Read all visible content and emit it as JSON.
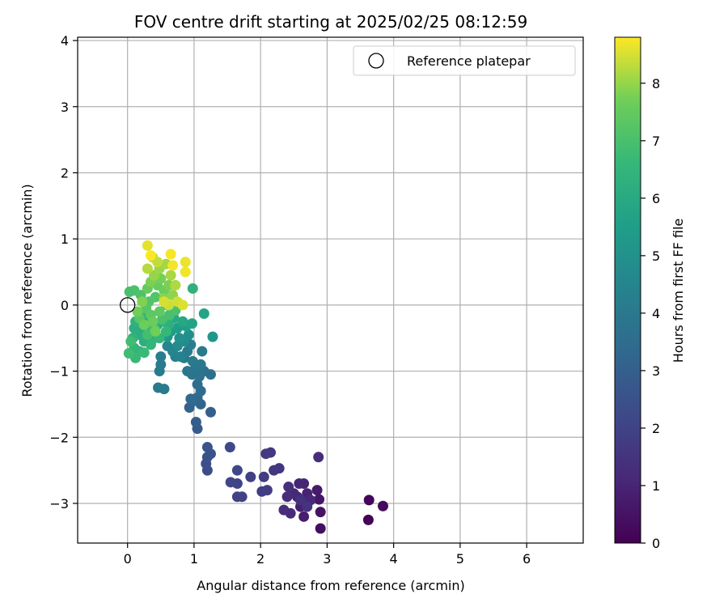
{
  "chart_data": {
    "type": "scatter",
    "title": "FOV centre drift starting at 2025/02/25 08:12:59",
    "xlabel": "Angular distance from reference (arcmin)",
    "ylabel": "Rotation from reference (arcmin)",
    "xlim": [
      -0.75,
      6.85
    ],
    "ylim": [
      -3.6,
      4.05
    ],
    "xticks": [
      0,
      1,
      2,
      3,
      4,
      5,
      6
    ],
    "yticks": [
      -3,
      -2,
      -1,
      0,
      1,
      2,
      3,
      4
    ],
    "grid": true,
    "legend": {
      "placement": "upper-right",
      "entries": [
        "Reference platepar"
      ]
    },
    "reference_point": {
      "x": 0.0,
      "y": 0.0,
      "label": "Reference platepar"
    },
    "colorbar": {
      "label": "Hours from first FF file",
      "min": 0,
      "max": 8.8,
      "ticks": [
        0,
        1,
        2,
        3,
        4,
        5,
        6,
        7,
        8
      ],
      "colormap": "viridis"
    },
    "points": [
      {
        "x": 3.62,
        "y": -3.25,
        "t": 0.05
      },
      {
        "x": 3.63,
        "y": -2.95,
        "t": 0.15
      },
      {
        "x": 3.84,
        "y": -3.04,
        "t": 0.25
      },
      {
        "x": 2.9,
        "y": -3.38,
        "t": 0.4
      },
      {
        "x": 2.9,
        "y": -3.13,
        "t": 0.5
      },
      {
        "x": 2.88,
        "y": -2.94,
        "t": 0.6
      },
      {
        "x": 2.85,
        "y": -2.8,
        "t": 0.7
      },
      {
        "x": 2.65,
        "y": -3.2,
        "t": 0.8
      },
      {
        "x": 2.6,
        "y": -3.05,
        "t": 0.85
      },
      {
        "x": 2.55,
        "y": -2.9,
        "t": 0.9
      },
      {
        "x": 2.7,
        "y": -2.85,
        "t": 0.95
      },
      {
        "x": 2.65,
        "y": -2.7,
        "t": 1.0
      },
      {
        "x": 2.58,
        "y": -2.7,
        "t": 1.05
      },
      {
        "x": 2.75,
        "y": -2.95,
        "t": 1.1
      },
      {
        "x": 2.5,
        "y": -2.85,
        "t": 1.15
      },
      {
        "x": 2.45,
        "y": -3.15,
        "t": 1.2
      },
      {
        "x": 2.35,
        "y": -3.1,
        "t": 1.25
      },
      {
        "x": 2.4,
        "y": -2.9,
        "t": 1.3
      },
      {
        "x": 2.42,
        "y": -2.75,
        "t": 1.35
      },
      {
        "x": 2.6,
        "y": -2.95,
        "t": 1.4
      },
      {
        "x": 2.7,
        "y": -3.05,
        "t": 1.45
      },
      {
        "x": 2.87,
        "y": -2.3,
        "t": 1.3
      },
      {
        "x": 2.28,
        "y": -2.47,
        "t": 1.55
      },
      {
        "x": 2.2,
        "y": -2.5,
        "t": 1.6
      },
      {
        "x": 2.15,
        "y": -2.23,
        "t": 1.65
      },
      {
        "x": 2.08,
        "y": -2.25,
        "t": 1.7
      },
      {
        "x": 2.05,
        "y": -2.6,
        "t": 1.75
      },
      {
        "x": 2.1,
        "y": -2.8,
        "t": 1.8
      },
      {
        "x": 2.02,
        "y": -2.82,
        "t": 1.85
      },
      {
        "x": 1.85,
        "y": -2.6,
        "t": 1.9
      },
      {
        "x": 1.72,
        "y": -2.9,
        "t": 1.95
      },
      {
        "x": 1.65,
        "y": -2.9,
        "t": 2.0
      },
      {
        "x": 1.65,
        "y": -2.7,
        "t": 2.05
      },
      {
        "x": 1.55,
        "y": -2.68,
        "t": 2.1
      },
      {
        "x": 1.65,
        "y": -2.5,
        "t": 2.15
      },
      {
        "x": 1.54,
        "y": -2.15,
        "t": 2.2
      },
      {
        "x": 1.2,
        "y": -2.5,
        "t": 2.3
      },
      {
        "x": 1.18,
        "y": -2.4,
        "t": 2.4
      },
      {
        "x": 1.2,
        "y": -2.3,
        "t": 2.5
      },
      {
        "x": 1.25,
        "y": -2.25,
        "t": 2.55
      },
      {
        "x": 1.2,
        "y": -2.15,
        "t": 2.6
      },
      {
        "x": 1.05,
        "y": -1.87,
        "t": 2.8
      },
      {
        "x": 1.03,
        "y": -1.77,
        "t": 2.9
      },
      {
        "x": 1.25,
        "y": -1.62,
        "t": 3.0
      },
      {
        "x": 0.93,
        "y": -1.55,
        "t": 3.1
      },
      {
        "x": 1.1,
        "y": -1.5,
        "t": 3.2
      },
      {
        "x": 1.0,
        "y": -1.45,
        "t": 3.3
      },
      {
        "x": 1.05,
        "y": -1.4,
        "t": 3.35
      },
      {
        "x": 0.95,
        "y": -1.42,
        "t": 3.4
      },
      {
        "x": 1.1,
        "y": -1.3,
        "t": 3.45
      },
      {
        "x": 1.05,
        "y": -1.2,
        "t": 3.5
      },
      {
        "x": 1.25,
        "y": -1.05,
        "t": 3.6
      },
      {
        "x": 1.15,
        "y": -1.0,
        "t": 3.7
      },
      {
        "x": 1.08,
        "y": -1.08,
        "t": 3.75
      },
      {
        "x": 0.97,
        "y": -1.05,
        "t": 3.8
      },
      {
        "x": 0.9,
        "y": -1.0,
        "t": 3.85
      },
      {
        "x": 1.02,
        "y": -0.95,
        "t": 3.9
      },
      {
        "x": 1.1,
        "y": -0.9,
        "t": 3.95
      },
      {
        "x": 0.85,
        "y": -0.8,
        "t": 4.0
      },
      {
        "x": 0.98,
        "y": -0.85,
        "t": 4.05
      },
      {
        "x": 1.12,
        "y": -0.7,
        "t": 4.1
      },
      {
        "x": 0.9,
        "y": -0.7,
        "t": 4.15
      },
      {
        "x": 0.95,
        "y": -0.6,
        "t": 4.2
      },
      {
        "x": 0.46,
        "y": -1.25,
        "t": 4.0
      },
      {
        "x": 0.55,
        "y": -1.27,
        "t": 4.05
      },
      {
        "x": 0.48,
        "y": -1.0,
        "t": 4.1
      },
      {
        "x": 0.5,
        "y": -0.9,
        "t": 4.15
      },
      {
        "x": 0.5,
        "y": -0.78,
        "t": 4.2
      },
      {
        "x": 0.72,
        "y": -0.78,
        "t": 4.3
      },
      {
        "x": 0.8,
        "y": -0.78,
        "t": 4.4
      },
      {
        "x": 0.68,
        "y": -0.7,
        "t": 4.5
      },
      {
        "x": 0.6,
        "y": -0.62,
        "t": 4.6
      },
      {
        "x": 0.75,
        "y": -0.62,
        "t": 4.7
      },
      {
        "x": 0.85,
        "y": -0.55,
        "t": 4.8
      },
      {
        "x": 0.92,
        "y": -0.45,
        "t": 4.9
      },
      {
        "x": 0.78,
        "y": -0.5,
        "t": 5.0
      },
      {
        "x": 1.28,
        "y": -0.48,
        "t": 5.2
      },
      {
        "x": 0.6,
        "y": -0.48,
        "t": 5.3
      },
      {
        "x": 0.65,
        "y": -0.4,
        "t": 5.4
      },
      {
        "x": 0.75,
        "y": -0.35,
        "t": 5.5
      },
      {
        "x": 0.88,
        "y": -0.32,
        "t": 5.6
      },
      {
        "x": 0.97,
        "y": -0.28,
        "t": 5.7
      },
      {
        "x": 1.15,
        "y": -0.13,
        "t": 5.8
      },
      {
        "x": 0.83,
        "y": -0.25,
        "t": 5.9
      },
      {
        "x": 0.7,
        "y": -0.2,
        "t": 6.0
      },
      {
        "x": 0.55,
        "y": -0.25,
        "t": 6.0
      },
      {
        "x": 0.45,
        "y": -0.3,
        "t": 6.05
      },
      {
        "x": 0.35,
        "y": -0.35,
        "t": 6.1
      },
      {
        "x": 0.3,
        "y": -0.25,
        "t": 6.1
      },
      {
        "x": 0.22,
        "y": -0.4,
        "t": 6.15
      },
      {
        "x": 0.15,
        "y": -0.45,
        "t": 6.15
      },
      {
        "x": 0.1,
        "y": -0.35,
        "t": 6.2
      },
      {
        "x": 0.25,
        "y": -0.55,
        "t": 6.2
      },
      {
        "x": 0.4,
        "y": -0.5,
        "t": 6.25
      },
      {
        "x": 0.62,
        "y": -0.3,
        "t": 6.25
      },
      {
        "x": 0.98,
        "y": 0.25,
        "t": 6.3
      },
      {
        "x": 0.2,
        "y": -0.15,
        "t": 6.3
      },
      {
        "x": 0.12,
        "y": -0.25,
        "t": 6.35
      },
      {
        "x": 0.08,
        "y": -0.5,
        "t": 6.4
      },
      {
        "x": 0.1,
        "y": -0.65,
        "t": 6.45
      },
      {
        "x": 0.18,
        "y": -0.7,
        "t": 6.5
      },
      {
        "x": 0.35,
        "y": -0.6,
        "t": 6.5
      },
      {
        "x": 0.48,
        "y": -0.5,
        "t": 6.55
      },
      {
        "x": 0.58,
        "y": -0.4,
        "t": 6.6
      },
      {
        "x": 0.12,
        "y": -0.8,
        "t": 6.65
      },
      {
        "x": 0.25,
        "y": -0.72,
        "t": 6.7
      },
      {
        "x": 0.02,
        "y": -0.73,
        "t": 6.8
      },
      {
        "x": 0.05,
        "y": -0.55,
        "t": 6.85
      },
      {
        "x": 0.3,
        "y": -0.45,
        "t": 6.9
      },
      {
        "x": 0.4,
        "y": -0.35,
        "t": 6.95
      },
      {
        "x": 0.52,
        "y": -0.22,
        "t": 7.0
      },
      {
        "x": 0.63,
        "y": -0.15,
        "t": 7.0
      },
      {
        "x": 0.72,
        "y": -0.08,
        "t": 7.05
      },
      {
        "x": 0.03,
        "y": 0.2,
        "t": 7.0
      },
      {
        "x": 0.1,
        "y": 0.22,
        "t": 7.05
      },
      {
        "x": 0.2,
        "y": 0.15,
        "t": 7.1
      },
      {
        "x": 0.32,
        "y": 0.05,
        "t": 7.15
      },
      {
        "x": 0.42,
        "y": 0.12,
        "t": 7.2
      },
      {
        "x": 0.28,
        "y": -0.05,
        "t": 7.25
      },
      {
        "x": 0.18,
        "y": -0.2,
        "t": 7.3
      },
      {
        "x": 0.35,
        "y": -0.15,
        "t": 7.35
      },
      {
        "x": 0.48,
        "y": -0.1,
        "t": 7.4
      },
      {
        "x": 0.58,
        "y": 0.0,
        "t": 7.45
      },
      {
        "x": 0.3,
        "y": 0.25,
        "t": 7.5
      },
      {
        "x": 0.45,
        "y": 0.3,
        "t": 7.55
      },
      {
        "x": 0.55,
        "y": 0.22,
        "t": 7.6
      },
      {
        "x": 0.38,
        "y": -0.25,
        "t": 7.6
      },
      {
        "x": 0.25,
        "y": -0.3,
        "t": 7.65
      },
      {
        "x": 0.42,
        "y": -0.4,
        "t": 7.7
      },
      {
        "x": 0.15,
        "y": -0.1,
        "t": 7.7
      },
      {
        "x": 0.5,
        "y": 0.4,
        "t": 7.75
      },
      {
        "x": 0.62,
        "y": 0.3,
        "t": 7.8
      },
      {
        "x": 0.35,
        "y": 0.35,
        "t": 7.8
      },
      {
        "x": 0.22,
        "y": 0.05,
        "t": 7.85
      },
      {
        "x": 0.55,
        "y": 0.1,
        "t": 7.9
      },
      {
        "x": 0.68,
        "y": 0.15,
        "t": 7.95
      },
      {
        "x": 0.4,
        "y": 0.45,
        "t": 8.0
      },
      {
        "x": 0.48,
        "y": 0.55,
        "t": 8.05
      },
      {
        "x": 0.58,
        "y": 0.62,
        "t": 8.1
      },
      {
        "x": 0.65,
        "y": 0.45,
        "t": 8.15
      },
      {
        "x": 0.72,
        "y": 0.3,
        "t": 8.2
      },
      {
        "x": 0.3,
        "y": 0.55,
        "t": 8.25
      },
      {
        "x": 0.38,
        "y": 0.72,
        "t": 8.3
      },
      {
        "x": 0.45,
        "y": 0.65,
        "t": 8.35
      },
      {
        "x": 0.62,
        "y": 0.0,
        "t": 8.4
      },
      {
        "x": 0.75,
        "y": 0.05,
        "t": 8.45
      },
      {
        "x": 0.55,
        "y": 0.05,
        "t": 8.5
      },
      {
        "x": 0.83,
        "y": 0.0,
        "t": 8.55
      },
      {
        "x": 0.3,
        "y": 0.9,
        "t": 8.6
      },
      {
        "x": 0.87,
        "y": 0.65,
        "t": 8.65
      },
      {
        "x": 0.87,
        "y": 0.5,
        "t": 8.7
      },
      {
        "x": 0.68,
        "y": 0.6,
        "t": 8.72
      },
      {
        "x": 0.65,
        "y": 0.77,
        "t": 8.75
      },
      {
        "x": 0.35,
        "y": 0.75,
        "t": 8.78
      }
    ]
  }
}
